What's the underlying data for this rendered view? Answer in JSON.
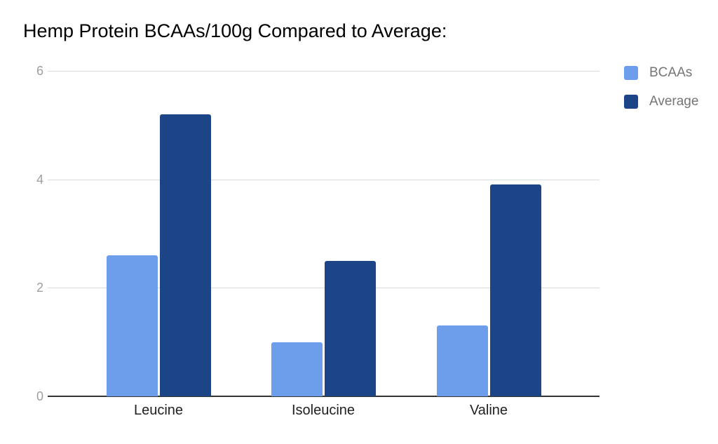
{
  "chart_data": {
    "type": "bar",
    "title": "Hemp Protein BCAAs/100g Compared to Average:",
    "categories": [
      "Leucine",
      "Isoleucine",
      "Valine"
    ],
    "series": [
      {
        "name": "BCAAs",
        "color": "#6d9eeb",
        "values": [
          2.6,
          1.0,
          1.3
        ]
      },
      {
        "name": "Average",
        "color": "#1c4587",
        "values": [
          5.2,
          2.5,
          3.9
        ]
      }
    ],
    "xlabel": "",
    "ylabel": "",
    "ylim": [
      0,
      6
    ],
    "yticks": [
      6,
      4,
      2,
      0
    ],
    "grid": true,
    "legend_position": "right-top"
  },
  "colors": {
    "background": "#ffffff",
    "title_text": "#000000",
    "gridline": "#dadada",
    "axis_line": "#333333",
    "ytick_text": "#9e9e9e",
    "xtick_text": "#212121",
    "legend_text": "#757575"
  }
}
